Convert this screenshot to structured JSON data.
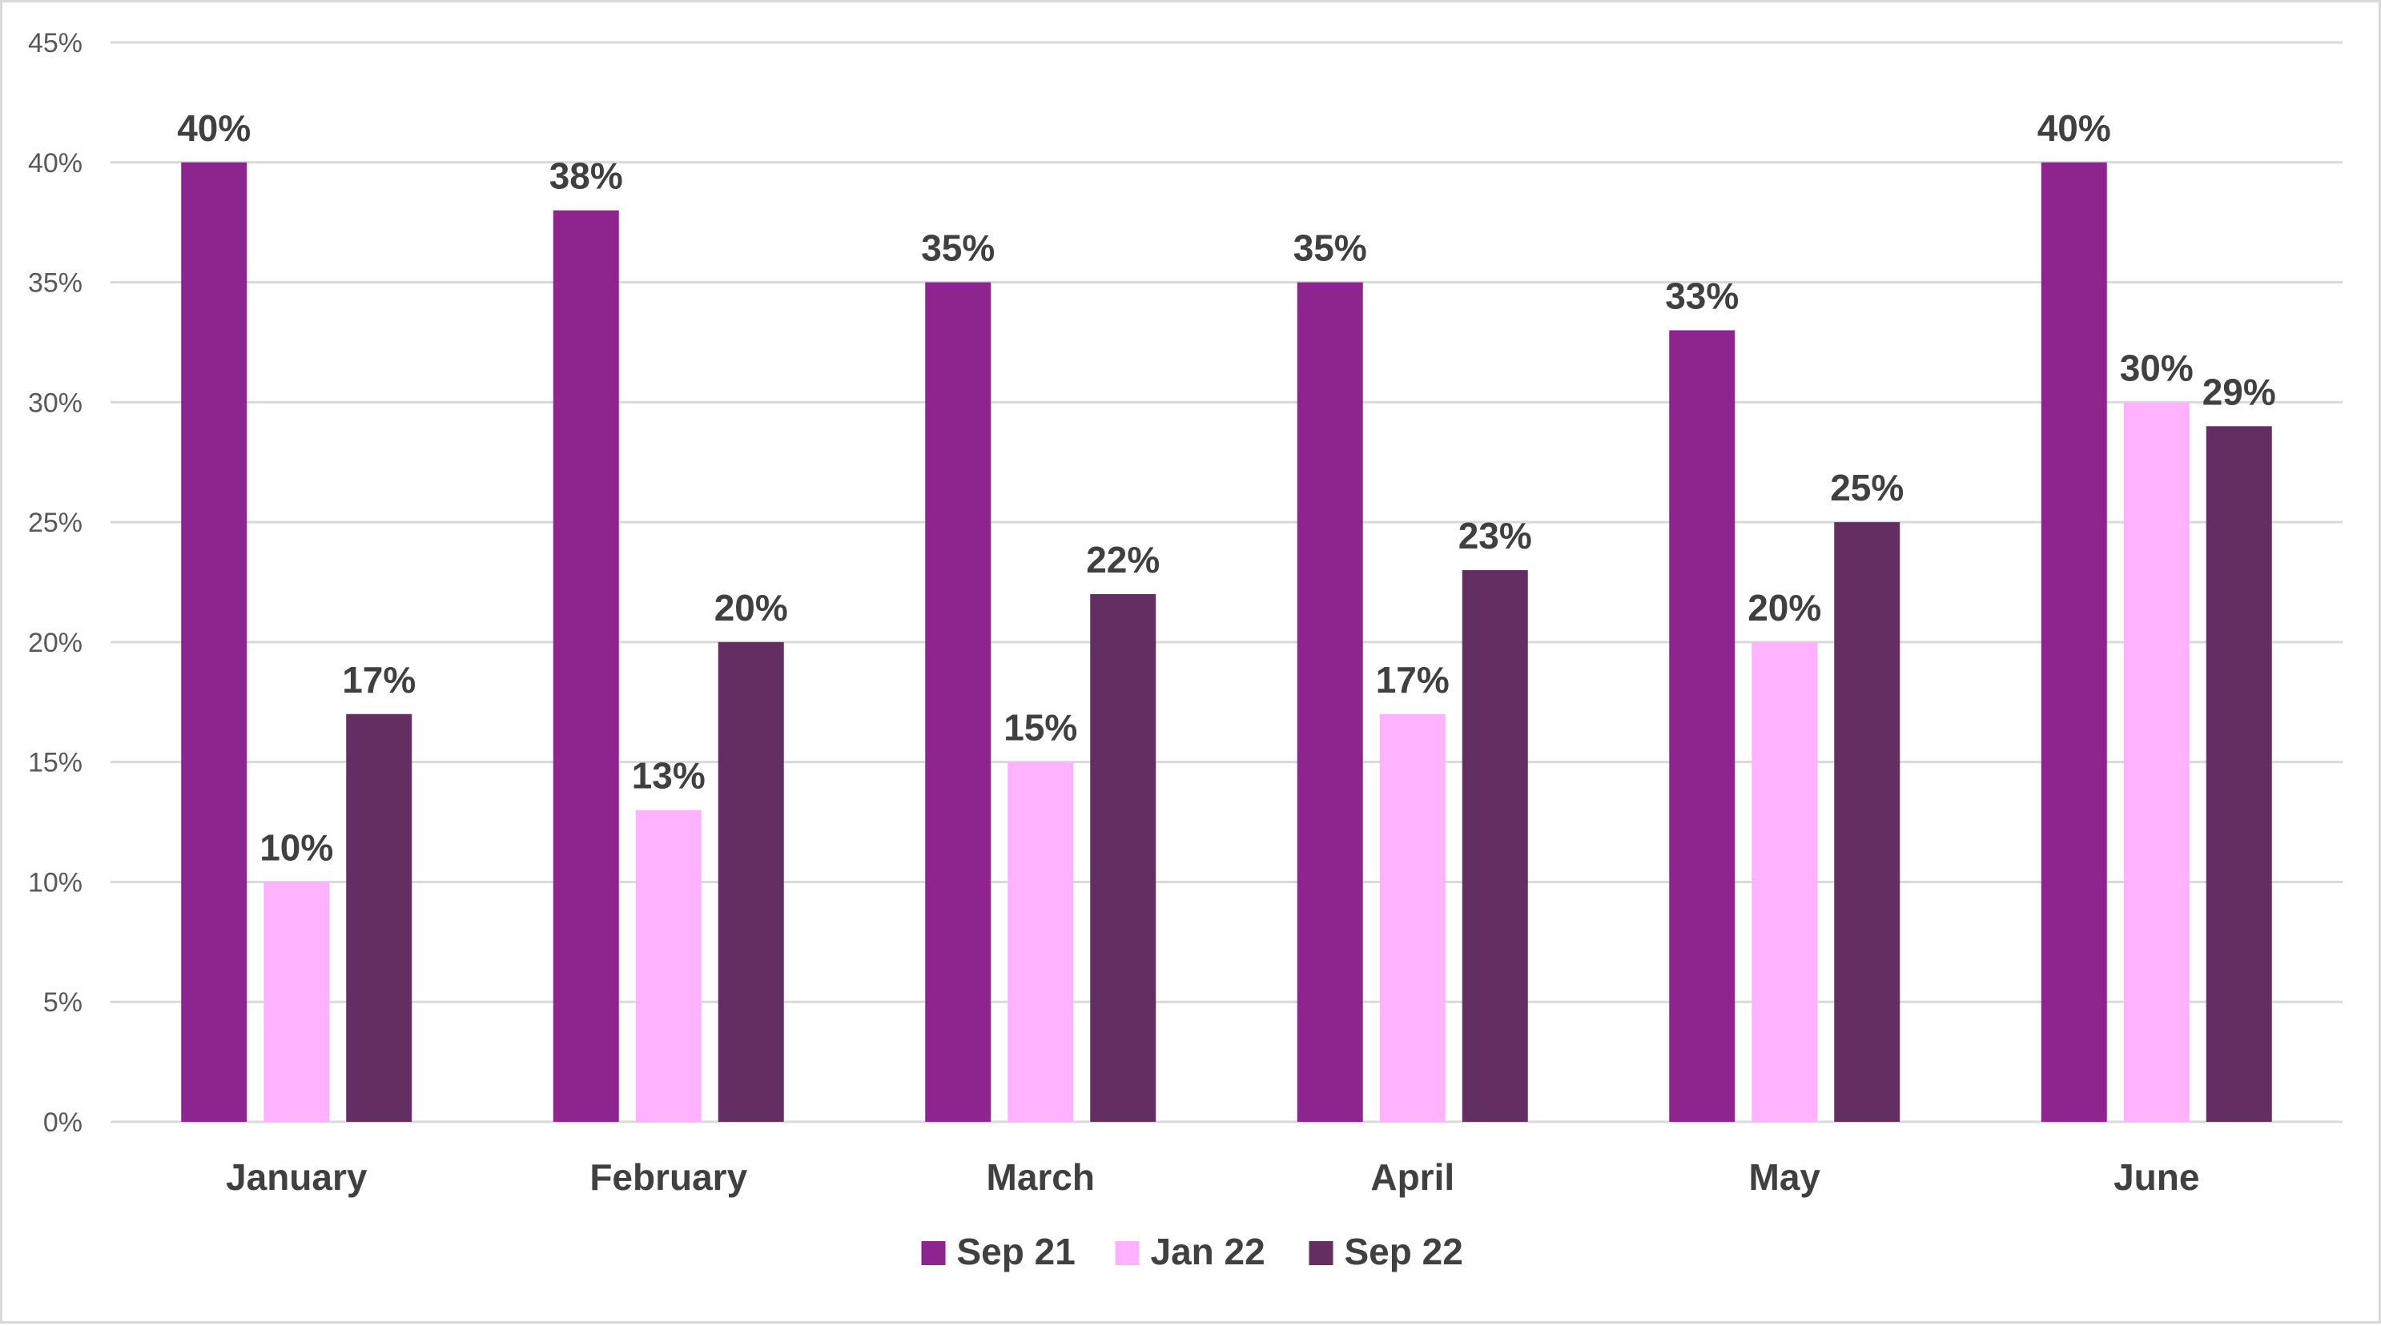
{
  "chart_data": {
    "type": "bar",
    "categories": [
      "January",
      "February",
      "March",
      "April",
      "May",
      "June"
    ],
    "series": [
      {
        "name": "Sep 21",
        "color": "#8e248e",
        "values": [
          40,
          38,
          35,
          35,
          33,
          40
        ],
        "labels": [
          "40%",
          "38%",
          "35%",
          "35%",
          "33%",
          "40%"
        ]
      },
      {
        "name": "Jan 22",
        "color": "#ffb3ff",
        "values": [
          10,
          13,
          15,
          17,
          20,
          30
        ],
        "labels": [
          "10%",
          "13%",
          "15%",
          "17%",
          "20%",
          "30%"
        ]
      },
      {
        "name": "Sep 22",
        "color": "#632f63",
        "values": [
          17,
          20,
          22,
          23,
          25,
          29
        ],
        "labels": [
          "17%",
          "20%",
          "22%",
          "23%",
          "25%",
          "29%"
        ]
      }
    ],
    "ylim": [
      0,
      45
    ],
    "ytick_labels": [
      "0%",
      "5%",
      "10%",
      "15%",
      "20%",
      "25%",
      "30%",
      "35%",
      "40%",
      "45%"
    ],
    "title": "",
    "xlabel": "",
    "ylabel": "",
    "grid": true,
    "legend_position": "bottom-center"
  }
}
